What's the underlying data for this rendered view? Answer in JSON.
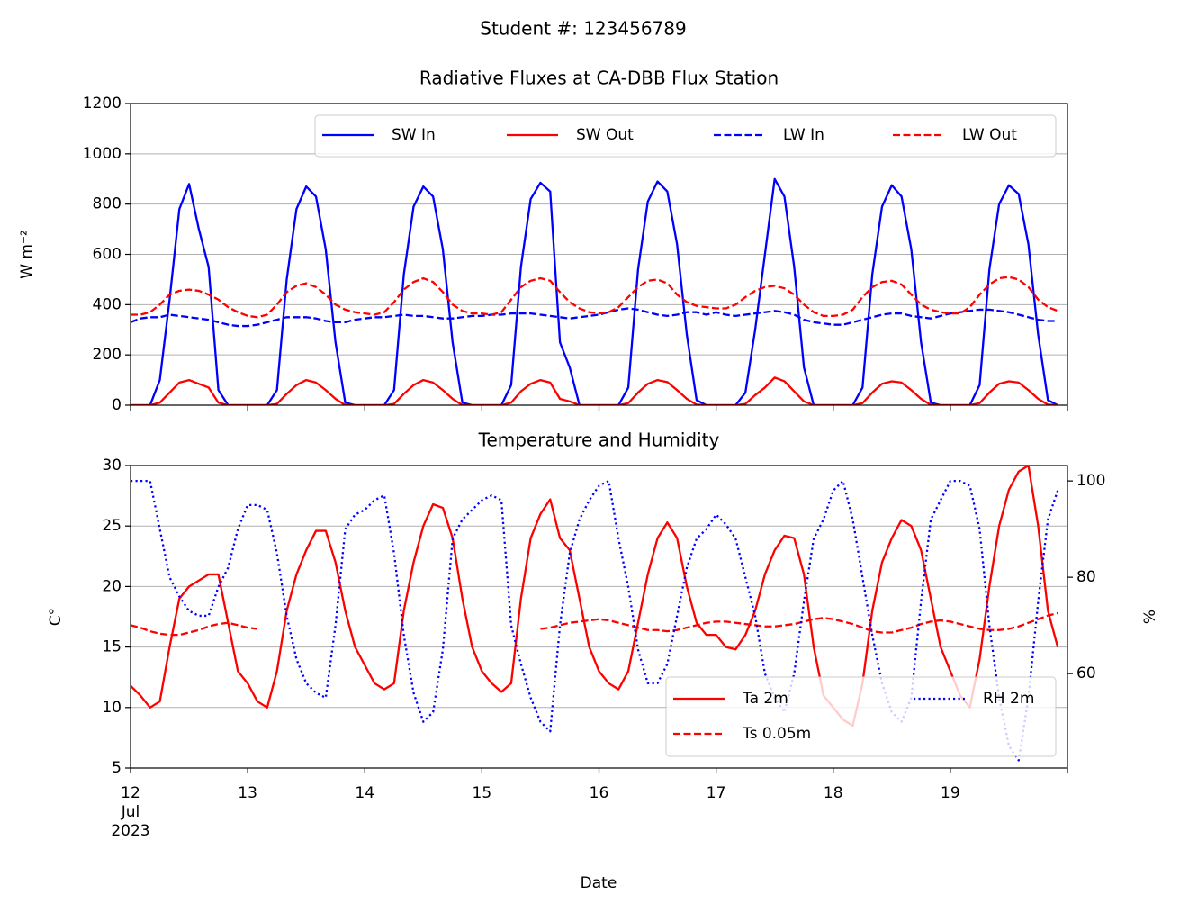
{
  "suptitle": "Student #: 123456789",
  "xlabel": "Date",
  "chart_data": [
    {
      "type": "line",
      "title": "Radiative Fluxes at CA-DBB Flux Station",
      "ylabel": "W m⁻²",
      "x": [
        "2023-07-12T00:00",
        "2023-07-12T02:00",
        "2023-07-12T04:00",
        "2023-07-12T06:00",
        "2023-07-12T08:00",
        "2023-07-12T10:00",
        "2023-07-12T12:00",
        "2023-07-12T14:00",
        "2023-07-12T16:00",
        "2023-07-12T18:00",
        "2023-07-12T20:00",
        "2023-07-12T22:00",
        "2023-07-13T00:00",
        "2023-07-13T02:00",
        "2023-07-13T04:00",
        "2023-07-13T06:00",
        "2023-07-13T08:00",
        "2023-07-13T10:00",
        "2023-07-13T12:00",
        "2023-07-13T14:00",
        "2023-07-13T16:00",
        "2023-07-13T18:00",
        "2023-07-13T20:00",
        "2023-07-13T22:00",
        "2023-07-14T00:00",
        "2023-07-14T02:00",
        "2023-07-14T04:00",
        "2023-07-14T06:00",
        "2023-07-14T08:00",
        "2023-07-14T10:00",
        "2023-07-14T12:00",
        "2023-07-14T14:00",
        "2023-07-14T16:00",
        "2023-07-14T18:00",
        "2023-07-14T20:00",
        "2023-07-14T22:00",
        "2023-07-15T00:00",
        "2023-07-15T02:00",
        "2023-07-15T04:00",
        "2023-07-15T06:00",
        "2023-07-15T08:00",
        "2023-07-15T10:00",
        "2023-07-15T12:00",
        "2023-07-15T14:00",
        "2023-07-15T16:00",
        "2023-07-15T18:00",
        "2023-07-15T20:00",
        "2023-07-15T22:00",
        "2023-07-16T00:00",
        "2023-07-16T02:00",
        "2023-07-16T04:00",
        "2023-07-16T06:00",
        "2023-07-16T08:00",
        "2023-07-16T10:00",
        "2023-07-16T12:00",
        "2023-07-16T14:00",
        "2023-07-16T16:00",
        "2023-07-16T18:00",
        "2023-07-16T20:00",
        "2023-07-16T22:00",
        "2023-07-17T00:00",
        "2023-07-17T02:00",
        "2023-07-17T04:00",
        "2023-07-17T06:00",
        "2023-07-17T08:00",
        "2023-07-17T10:00",
        "2023-07-17T12:00",
        "2023-07-17T14:00",
        "2023-07-17T16:00",
        "2023-07-17T18:00",
        "2023-07-17T20:00",
        "2023-07-17T22:00",
        "2023-07-18T00:00",
        "2023-07-18T02:00",
        "2023-07-18T04:00",
        "2023-07-18T06:00",
        "2023-07-18T08:00",
        "2023-07-18T10:00",
        "2023-07-18T12:00",
        "2023-07-18T14:00",
        "2023-07-18T16:00",
        "2023-07-18T18:00",
        "2023-07-18T20:00",
        "2023-07-18T22:00",
        "2023-07-19T00:00",
        "2023-07-19T02:00",
        "2023-07-19T04:00",
        "2023-07-19T06:00",
        "2023-07-19T08:00",
        "2023-07-19T10:00",
        "2023-07-19T12:00",
        "2023-07-19T14:00",
        "2023-07-19T16:00",
        "2023-07-19T18:00",
        "2023-07-19T20:00",
        "2023-07-19T22:00"
      ],
      "series": [
        {
          "name": "SW In",
          "color": "#0000ff",
          "style": "solid",
          "values": [
            0,
            0,
            0,
            100,
            420,
            780,
            880,
            700,
            550,
            60,
            0,
            0,
            0,
            0,
            0,
            60,
            500,
            780,
            870,
            830,
            620,
            250,
            10,
            0,
            0,
            0,
            0,
            60,
            520,
            790,
            870,
            830,
            620,
            250,
            10,
            0,
            0,
            0,
            0,
            80,
            550,
            820,
            885,
            850,
            250,
            150,
            0,
            0,
            0,
            0,
            0,
            70,
            540,
            810,
            890,
            850,
            640,
            280,
            20,
            0,
            0,
            0,
            0,
            50,
            300,
            600,
            900,
            830,
            550,
            150,
            0,
            0,
            0,
            0,
            0,
            70,
            520,
            790,
            875,
            830,
            620,
            250,
            10,
            0,
            0,
            0,
            0,
            80,
            540,
            800,
            875,
            840,
            640,
            280,
            20,
            0
          ]
        },
        {
          "name": "SW Out",
          "color": "#ff0000",
          "style": "solid",
          "values": [
            0,
            0,
            0,
            10,
            50,
            90,
            100,
            85,
            70,
            10,
            0,
            0,
            0,
            0,
            0,
            5,
            45,
            80,
            100,
            90,
            60,
            25,
            0,
            0,
            0,
            0,
            0,
            5,
            45,
            80,
            100,
            90,
            60,
            25,
            0,
            0,
            0,
            0,
            0,
            10,
            55,
            85,
            100,
            90,
            25,
            15,
            0,
            0,
            0,
            0,
            0,
            8,
            50,
            85,
            100,
            92,
            60,
            25,
            2,
            0,
            0,
            0,
            0,
            5,
            40,
            70,
            110,
            95,
            55,
            15,
            0,
            0,
            0,
            0,
            0,
            8,
            50,
            85,
            95,
            90,
            60,
            25,
            1,
            0,
            0,
            0,
            0,
            8,
            50,
            85,
            95,
            90,
            60,
            25,
            2,
            0
          ]
        },
        {
          "name": "LW In",
          "color": "#0000ff",
          "style": "dashed",
          "values": [
            330,
            345,
            350,
            350,
            360,
            355,
            350,
            345,
            340,
            330,
            320,
            315,
            315,
            320,
            330,
            340,
            350,
            350,
            350,
            345,
            335,
            330,
            330,
            340,
            345,
            350,
            350,
            355,
            360,
            355,
            355,
            350,
            345,
            345,
            350,
            355,
            355,
            360,
            360,
            365,
            365,
            365,
            360,
            355,
            350,
            345,
            350,
            355,
            360,
            370,
            380,
            385,
            380,
            370,
            360,
            355,
            360,
            370,
            370,
            360,
            370,
            360,
            355,
            360,
            365,
            370,
            375,
            370,
            360,
            340,
            330,
            325,
            320,
            320,
            330,
            340,
            350,
            360,
            365,
            365,
            355,
            350,
            345,
            355,
            365,
            370,
            375,
            380,
            380,
            375,
            370,
            360,
            350,
            340,
            335,
            335
          ]
        },
        {
          "name": "LW Out",
          "color": "#ff0000",
          "style": "dashed",
          "values": [
            360,
            360,
            370,
            400,
            440,
            455,
            460,
            455,
            440,
            420,
            390,
            370,
            355,
            350,
            360,
            400,
            450,
            475,
            485,
            470,
            440,
            400,
            380,
            370,
            365,
            360,
            370,
            410,
            460,
            490,
            505,
            490,
            450,
            400,
            375,
            365,
            365,
            360,
            370,
            420,
            470,
            495,
            505,
            495,
            450,
            410,
            385,
            370,
            365,
            370,
            390,
            430,
            470,
            495,
            500,
            485,
            440,
            410,
            395,
            390,
            385,
            385,
            400,
            430,
            455,
            470,
            475,
            465,
            440,
            400,
            370,
            355,
            355,
            360,
            380,
            430,
            470,
            490,
            495,
            480,
            440,
            400,
            380,
            370,
            365,
            365,
            390,
            440,
            480,
            505,
            510,
            500,
            470,
            420,
            390,
            375
          ]
        }
      ],
      "xlim": [
        "2023-07-12T00:00",
        "2023-07-20T00:00"
      ],
      "xticks": [
        "2023-07-12T00:00",
        "2023-07-13T00:00",
        "2023-07-14T00:00",
        "2023-07-15T00:00",
        "2023-07-16T00:00",
        "2023-07-17T00:00",
        "2023-07-18T00:00",
        "2023-07-19T00:00",
        "2023-07-20T00:00"
      ],
      "ylim": [
        0,
        1200
      ],
      "yticks": [
        0,
        200,
        400,
        600,
        800,
        1000,
        1200
      ],
      "grid": true,
      "legend": "upper right"
    },
    {
      "type": "line",
      "title": "Temperature and Humidity",
      "ylabel": "C°",
      "y2label": "%",
      "x": [
        "2023-07-12T00:00",
        "2023-07-12T02:00",
        "2023-07-12T04:00",
        "2023-07-12T06:00",
        "2023-07-12T08:00",
        "2023-07-12T10:00",
        "2023-07-12T12:00",
        "2023-07-12T14:00",
        "2023-07-12T16:00",
        "2023-07-12T18:00",
        "2023-07-12T20:00",
        "2023-07-12T22:00",
        "2023-07-13T00:00",
        "2023-07-13T02:00",
        "2023-07-13T04:00",
        "2023-07-13T06:00",
        "2023-07-13T08:00",
        "2023-07-13T10:00",
        "2023-07-13T12:00",
        "2023-07-13T14:00",
        "2023-07-13T16:00",
        "2023-07-13T18:00",
        "2023-07-13T20:00",
        "2023-07-13T22:00",
        "2023-07-14T00:00",
        "2023-07-14T02:00",
        "2023-07-14T04:00",
        "2023-07-14T06:00",
        "2023-07-14T08:00",
        "2023-07-14T10:00",
        "2023-07-14T12:00",
        "2023-07-14T14:00",
        "2023-07-14T16:00",
        "2023-07-14T18:00",
        "2023-07-14T20:00",
        "2023-07-14T22:00",
        "2023-07-15T00:00",
        "2023-07-15T02:00",
        "2023-07-15T04:00",
        "2023-07-15T06:00",
        "2023-07-15T08:00",
        "2023-07-15T10:00",
        "2023-07-15T12:00",
        "2023-07-15T14:00",
        "2023-07-15T16:00",
        "2023-07-15T18:00",
        "2023-07-15T20:00",
        "2023-07-15T22:00",
        "2023-07-16T00:00",
        "2023-07-16T02:00",
        "2023-07-16T04:00",
        "2023-07-16T06:00",
        "2023-07-16T08:00",
        "2023-07-16T10:00",
        "2023-07-16T12:00",
        "2023-07-16T14:00",
        "2023-07-16T16:00",
        "2023-07-16T18:00",
        "2023-07-16T20:00",
        "2023-07-16T22:00",
        "2023-07-17T00:00",
        "2023-07-17T02:00",
        "2023-07-17T04:00",
        "2023-07-17T06:00",
        "2023-07-17T08:00",
        "2023-07-17T10:00",
        "2023-07-17T12:00",
        "2023-07-17T14:00",
        "2023-07-17T16:00",
        "2023-07-17T18:00",
        "2023-07-17T20:00",
        "2023-07-17T22:00",
        "2023-07-18T00:00",
        "2023-07-18T02:00",
        "2023-07-18T04:00",
        "2023-07-18T06:00",
        "2023-07-18T08:00",
        "2023-07-18T10:00",
        "2023-07-18T12:00",
        "2023-07-18T14:00",
        "2023-07-18T16:00",
        "2023-07-18T18:00",
        "2023-07-18T20:00",
        "2023-07-18T22:00",
        "2023-07-19T00:00",
        "2023-07-19T02:00",
        "2023-07-19T04:00",
        "2023-07-19T06:00",
        "2023-07-19T08:00",
        "2023-07-19T10:00",
        "2023-07-19T12:00",
        "2023-07-19T14:00",
        "2023-07-19T16:00",
        "2023-07-19T18:00",
        "2023-07-19T20:00",
        "2023-07-19T22:00"
      ],
      "series": [
        {
          "name": "Ta 2m",
          "color": "#ff0000",
          "style": "solid",
          "values": [
            11.8,
            11,
            10,
            10.5,
            15,
            19,
            20,
            20.5,
            21,
            21,
            17,
            13,
            12,
            10.5,
            10,
            13,
            18,
            21,
            23,
            24.6,
            24.6,
            22,
            18,
            15,
            13.5,
            12,
            11.5,
            12,
            18,
            22,
            25,
            26.8,
            26.5,
            24,
            19,
            15,
            13,
            12,
            11.3,
            12,
            19,
            24,
            26,
            27.2,
            24,
            23,
            19,
            15,
            13,
            12,
            11.5,
            13,
            17,
            21,
            24,
            25.3,
            24,
            20,
            17,
            16,
            16,
            15,
            14.8,
            16,
            18,
            21,
            23,
            24.2,
            24,
            21,
            15,
            11,
            10,
            9,
            8.5,
            12,
            18,
            22,
            24,
            25.5,
            25,
            23,
            19,
            15,
            13,
            11,
            10,
            14,
            20,
            25,
            28,
            29.5,
            30,
            25,
            18,
            15
          ]
        },
        {
          "name": "Ts 0.05m",
          "color": "#ff0000",
          "style": "dashed",
          "values": [
            16.8,
            16.6,
            16.3,
            16.1,
            16.0,
            16.0,
            16.2,
            16.4,
            16.7,
            16.9,
            17.0,
            16.8,
            16.6,
            16.5,
            null,
            null,
            null,
            null,
            null,
            null,
            null,
            null,
            null,
            null,
            null,
            null,
            null,
            null,
            null,
            null,
            null,
            null,
            null,
            null,
            null,
            null,
            null,
            null,
            null,
            null,
            null,
            null,
            16.5,
            16.6,
            16.8,
            17.0,
            17.1,
            17.2,
            17.3,
            17.2,
            17.0,
            16.8,
            16.6,
            16.4,
            16.4,
            16.3,
            16.4,
            16.6,
            16.8,
            17.0,
            17.1,
            17.1,
            17.0,
            16.9,
            16.8,
            16.7,
            16.7,
            16.8,
            16.9,
            17.1,
            17.3,
            17.4,
            17.3,
            17.1,
            16.9,
            16.6,
            16.3,
            16.2,
            16.2,
            16.4,
            16.6,
            16.9,
            17.1,
            17.2,
            17.1,
            16.9,
            16.7,
            16.5,
            16.4,
            16.4,
            16.5,
            16.7,
            17.0,
            17.3,
            17.6,
            17.8
          ]
        },
        {
          "name": "RH 2m",
          "color": "#0000ff",
          "style": "dotted",
          "axis": "y2",
          "values": [
            100,
            100,
            100,
            90,
            80,
            76,
            73,
            72,
            72,
            78,
            82,
            90,
            95,
            95,
            94,
            85,
            72,
            63,
            58,
            56,
            55,
            70,
            90,
            93,
            94,
            96,
            97,
            85,
            68,
            56,
            50,
            52,
            65,
            88,
            92,
            94,
            96,
            97,
            96,
            70,
            62,
            55,
            50,
            48,
            70,
            85,
            92,
            96,
            99,
            100,
            88,
            78,
            65,
            58,
            58,
            62,
            72,
            82,
            88,
            90,
            93,
            91,
            88,
            80,
            72,
            60,
            55,
            52,
            60,
            75,
            88,
            92,
            98,
            100,
            92,
            80,
            68,
            58,
            52,
            50,
            55,
            75,
            92,
            96,
            100,
            100,
            99,
            90,
            70,
            55,
            45,
            42,
            55,
            75,
            92,
            98
          ]
        }
      ],
      "xlim": [
        "2023-07-12T00:00",
        "2023-07-20T00:00"
      ],
      "xticks": [
        {
          "value": "2023-07-12T00:00",
          "label": "12\nJul\n2023"
        },
        {
          "value": "2023-07-13T00:00",
          "label": "13"
        },
        {
          "value": "2023-07-14T00:00",
          "label": "14"
        },
        {
          "value": "2023-07-15T00:00",
          "label": "15"
        },
        {
          "value": "2023-07-16T00:00",
          "label": "16"
        },
        {
          "value": "2023-07-17T00:00",
          "label": "17"
        },
        {
          "value": "2023-07-18T00:00",
          "label": "18"
        },
        {
          "value": "2023-07-19T00:00",
          "label": "19"
        },
        "2023-07-20T00:00"
      ],
      "ylim": [
        5,
        30
      ],
      "yticks": [
        5,
        10,
        15,
        20,
        25,
        30
      ],
      "y2lim": [
        40.4,
        103.2
      ],
      "y2ticks": [
        60,
        80,
        100
      ],
      "grid": true,
      "legend": "lower right"
    }
  ]
}
